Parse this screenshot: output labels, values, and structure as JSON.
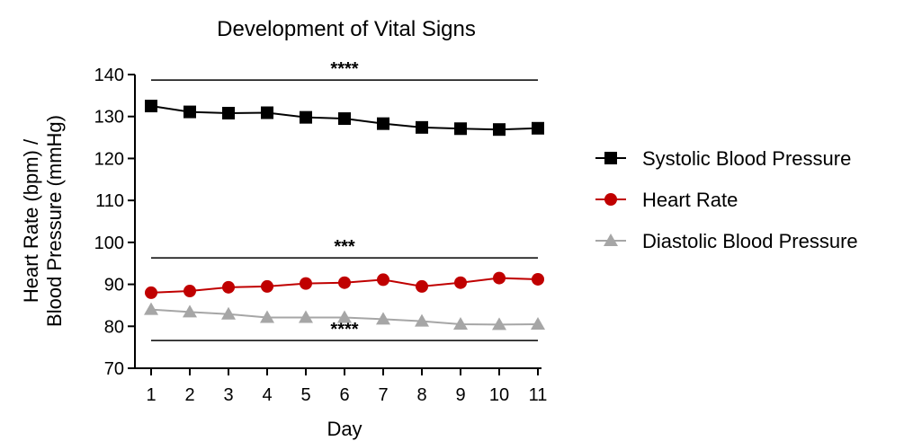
{
  "chart_data": {
    "type": "line",
    "title": "Development of Vital Signs",
    "xlabel": "Day",
    "ylabel_line1": "Heart Rate (bpm) /",
    "ylabel_line2": "Blood Pressure (mmHg)",
    "x": [
      1,
      2,
      3,
      4,
      5,
      6,
      7,
      8,
      9,
      10,
      11
    ],
    "x_ticks": [
      "1",
      "2",
      "3",
      "4",
      "5",
      "6",
      "7",
      "8",
      "9",
      "10",
      "11"
    ],
    "y_ticks": [
      "70",
      "80",
      "90",
      "100",
      "110",
      "120",
      "130",
      "140"
    ],
    "ylim": [
      70,
      140
    ],
    "xlim": [
      0.5,
      11.5
    ],
    "grid": false,
    "legend_position": "right",
    "series": [
      {
        "name": "Systolic Blood Pressure",
        "color": "#000000",
        "marker": "square",
        "values": [
          132.5,
          131.1,
          130.8,
          130.9,
          129.8,
          129.5,
          128.3,
          127.4,
          127.1,
          126.9,
          127.2
        ]
      },
      {
        "name": "Heart Rate",
        "color": "#c00000",
        "marker": "circle",
        "values": [
          88.0,
          88.4,
          89.3,
          89.5,
          90.2,
          90.4,
          91.1,
          89.5,
          90.4,
          91.5,
          91.2
        ]
      },
      {
        "name": "Diastolic Blood Pressure",
        "color": "#a6a6a6",
        "marker": "triangle",
        "values": [
          84.0,
          83.4,
          82.9,
          82.1,
          82.1,
          82.1,
          81.7,
          81.2,
          80.5,
          80.4,
          80.5
        ]
      }
    ],
    "significance_bars": [
      {
        "label": "****",
        "y": 138.7,
        "x_start": 1,
        "x_end": 11
      },
      {
        "label": "***",
        "y": 96.3,
        "x_start": 1,
        "x_end": 11
      },
      {
        "label": "****",
        "y": 76.6,
        "x_start": 1,
        "x_end": 11
      }
    ]
  }
}
